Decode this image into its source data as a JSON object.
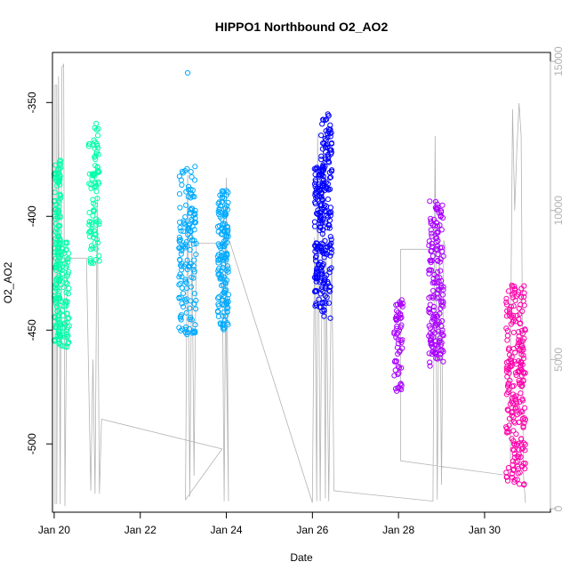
{
  "chart_data": {
    "type": "scatter",
    "title": "HIPPO1 Northbound O2_AO2",
    "xlabel": "Date",
    "ylabel": "O2_AO2",
    "xlim": [
      19.96,
      31.53
    ],
    "ylim": [
      -530,
      -328
    ],
    "y2lim": [
      -120,
      15300
    ],
    "x_ticks": [
      20,
      22,
      24,
      26,
      28,
      30
    ],
    "x_tick_labels": [
      "Jan 20",
      "Jan 22",
      "Jan 24",
      "Jan 26",
      "Jan 28",
      "Jan 30"
    ],
    "y_ticks": [
      -500,
      -450,
      -400,
      -350
    ],
    "y2_ticks": [
      0,
      5000,
      10000,
      15000
    ],
    "grid": false,
    "legend": "none",
    "series": [
      {
        "color": "#00ffaa",
        "clusters": [
          {
            "x0": 20.0,
            "x1": 20.15,
            "ys": -455,
            "ye": -375,
            "n": 150
          },
          {
            "x0": 20.1,
            "x1": 20.35,
            "ys": -458,
            "ye": -410,
            "n": 80
          },
          {
            "x0": 20.8,
            "x1": 21.05,
            "ys": -422,
            "ye": -358,
            "n": 90
          }
        ]
      },
      {
        "color": "#00aaff",
        "clusters": [
          {
            "x0": 22.9,
            "x1": 23.3,
            "ys": -452,
            "ye": -378,
            "n": 150
          },
          {
            "x0": 23.8,
            "x1": 24.05,
            "ys": -450,
            "ye": -388,
            "n": 150
          }
        ],
        "outlier": {
          "x": 23.1,
          "y": -337
        }
      },
      {
        "color": "#0000ff",
        "clusters": [
          {
            "x0": 26.05,
            "x1": 26.25,
            "ys": -440,
            "ye": -377,
            "n": 120
          },
          {
            "x0": 26.2,
            "x1": 26.45,
            "ys": -445,
            "ye": -354,
            "n": 150
          }
        ]
      },
      {
        "color": "#aa00ff",
        "clusters": [
          {
            "x0": 27.9,
            "x1": 28.1,
            "ys": -477,
            "ye": -435,
            "n": 60
          },
          {
            "x0": 28.7,
            "x1": 29.05,
            "ys": -466,
            "ye": -393,
            "n": 170
          }
        ]
      },
      {
        "color": "#ff00aa",
        "clusters": [
          {
            "x0": 30.5,
            "x1": 30.95,
            "ys": -518,
            "ye": -430,
            "n": 230
          }
        ]
      }
    ],
    "altitude": {
      "color": "#b3b3b3",
      "points": [
        [
          20.02,
          150
        ],
        [
          20.02,
          14200
        ],
        [
          20.06,
          14200
        ],
        [
          20.06,
          150
        ],
        [
          20.1,
          14500
        ],
        [
          20.14,
          150
        ],
        [
          20.18,
          14800
        ],
        [
          20.22,
          14900
        ],
        [
          20.25,
          80
        ],
        [
          20.3,
          8400
        ],
        [
          20.75,
          8400
        ],
        [
          20.85,
          600
        ],
        [
          20.9,
          5000
        ],
        [
          20.95,
          500
        ],
        [
          21.0,
          10500
        ],
        [
          21.05,
          500
        ],
        [
          21.1,
          3000
        ],
        [
          23.9,
          2000
        ],
        [
          23.05,
          300
        ],
        [
          23.1,
          11200
        ],
        [
          23.15,
          400
        ],
        [
          23.2,
          9400
        ],
        [
          23.25,
          1100
        ],
        [
          23.3,
          8900
        ],
        [
          23.9,
          8900
        ],
        [
          23.95,
          250
        ],
        [
          24.0,
          11100
        ],
        [
          24.05,
          250
        ],
        [
          23.96,
          9500
        ],
        [
          26.0,
          200
        ],
        [
          26.05,
          9100
        ],
        [
          26.1,
          250
        ],
        [
          26.12,
          12600
        ],
        [
          26.18,
          250
        ],
        [
          26.25,
          12500
        ],
        [
          26.3,
          350
        ],
        [
          26.32,
          8700
        ],
        [
          26.38,
          250
        ],
        [
          26.45,
          9000
        ],
        [
          26.5,
          600
        ],
        [
          28.8,
          250
        ],
        [
          28.85,
          12500
        ],
        [
          28.9,
          300
        ],
        [
          28.95,
          9000
        ],
        [
          29.0,
          800
        ],
        [
          29.05,
          9000
        ],
        [
          29.1,
          8700
        ],
        [
          28.05,
          8700
        ],
        [
          28.05,
          1600
        ],
        [
          30.6,
          1100
        ],
        [
          30.6,
          5000
        ],
        [
          30.65,
          13400
        ],
        [
          30.7,
          10000
        ],
        [
          30.75,
          12000
        ],
        [
          30.8,
          13600
        ],
        [
          30.85,
          12500
        ],
        [
          30.9,
          1200
        ],
        [
          30.95,
          200
        ]
      ]
    }
  }
}
